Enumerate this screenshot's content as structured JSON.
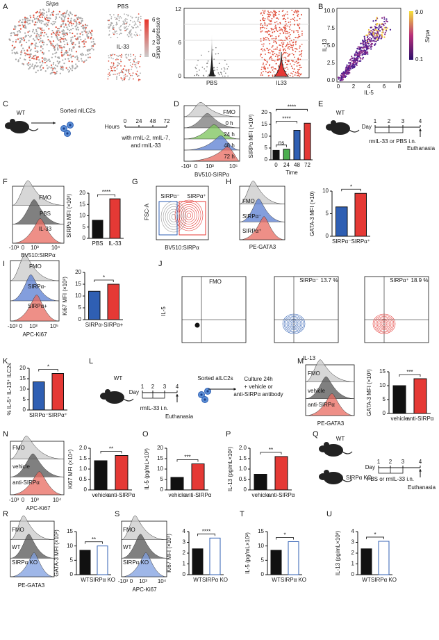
{
  "panels": [
    {
      "letter": "A",
      "labels": [
        "Sirpa",
        "PBS",
        "IL-33",
        "Sirpa expression",
        "0",
        "2",
        "4",
        "6",
        "0",
        "6",
        "12",
        "PBS",
        "IL33"
      ]
    },
    {
      "letter": "B",
      "labels": [
        "10.0",
        "7.5",
        "5.0",
        "2.5",
        "0.0",
        "0",
        "2",
        "4",
        "6",
        "8",
        "IL-13",
        "IL-5",
        "9.0",
        "0.1",
        "Sirpa"
      ]
    },
    {
      "letter": "C",
      "labels": [
        "WT",
        "Sorted nILC2s",
        "Hours",
        "0",
        "24",
        "48",
        "72",
        "with rmIL-2, rmIL-7,",
        "and rmIL-33"
      ]
    },
    {
      "letter": "D",
      "labels": [
        "FMO",
        "0 h",
        "24 h",
        "48 h",
        "72 h",
        "-10³",
        "0",
        "10³",
        "10⁵",
        "BV510-SIRPα"
      ],
      "chart": {
        "type": "bar",
        "ylabel": "SIRPα MFI (×10³)",
        "xlabel": "Time",
        "categories": [
          "0",
          "24",
          "48",
          "72"
        ],
        "values": [
          4,
          4.5,
          12.5,
          15.5
        ],
        "colors": [
          "#111111",
          "#4caf50",
          "#2f5fb3",
          "#e53935"
        ],
        "ylim": [
          0,
          20
        ],
        "yticks": [
          0,
          5,
          10,
          15,
          20
        ],
        "significance": [
          "ns",
          "****",
          "****"
        ]
      }
    },
    {
      "letter": "E",
      "labels": [
        "WT",
        "Day",
        "1",
        "2",
        "3",
        "4",
        "rmIL-33 or PBS i.n.",
        "Euthanasia"
      ]
    },
    {
      "letter": "F",
      "labels": [
        "FMO",
        "PBS",
        "IL-33",
        "-10³",
        "0",
        "10³",
        "10⁴",
        "BV510:SIRPα"
      ],
      "chart": {
        "type": "bar",
        "ylabel": "SIRPα MFI (×10³)",
        "categories": [
          "PBS",
          "IL-33"
        ],
        "values": [
          8,
          17.5
        ],
        "colors": [
          "#111111",
          "#e53935"
        ],
        "ylim": [
          0,
          20
        ],
        "yticks": [
          0,
          5,
          10,
          15,
          20
        ],
        "significance": [
          "****"
        ]
      }
    },
    {
      "letter": "G",
      "labels": [
        "FSC-A",
        "SIRPα⁻",
        "SIRPα⁺",
        "BV510:SIRPα"
      ]
    },
    {
      "letter": "H",
      "labels": [
        "FMO",
        "SIRPα⁻",
        "SIRPα⁺",
        "PE-GATA3"
      ],
      "chart": {
        "type": "bar",
        "ylabel": "GATA-3 MFI (×10)",
        "categories": [
          "SIRPα⁻",
          "SIRPα⁺"
        ],
        "values": [
          6.5,
          9.5
        ],
        "colors": [
          "#2f5fb3",
          "#e53935"
        ],
        "ylim": [
          0,
          10
        ],
        "yticks": [
          0,
          5,
          10
        ],
        "significance": [
          "*"
        ]
      }
    },
    {
      "letter": "I",
      "labels": [
        "FMO",
        "SIRPα-",
        "SIRPα+",
        "-10³",
        "0",
        "10³",
        "10⁵",
        "APC-Ki67"
      ],
      "chart": {
        "type": "bar",
        "ylabel": "Ki67 MFI (×10²)",
        "categories": [
          "SIRPα-",
          "SIRPα+"
        ],
        "values": [
          12,
          15
        ],
        "colors": [
          "#2f5fb3",
          "#e53935"
        ],
        "ylim": [
          0,
          20
        ],
        "yticks": [
          0,
          5,
          10,
          15,
          20
        ],
        "significance": [
          "*"
        ]
      }
    },
    {
      "letter": "J",
      "labels": [
        "FMO",
        "SIRPα⁻",
        "13.7 %",
        "SIRPα⁺",
        "18.9 %",
        "IL-5",
        "IL-13"
      ]
    },
    {
      "letter": "K",
      "labels": [],
      "chart": {
        "type": "bar",
        "ylabel": "% IL-5⁺ IL-13⁺ ILC2s",
        "categories": [
          "SIRPα⁻",
          "SIRPα⁺"
        ],
        "values": [
          13.5,
          17.5
        ],
        "colors": [
          "#2f5fb3",
          "#e53935"
        ],
        "ylim": [
          0,
          20
        ],
        "yticks": [
          0,
          5,
          10,
          15,
          20
        ],
        "significance": [
          "*"
        ]
      }
    },
    {
      "letter": "L",
      "labels": [
        "WT",
        "Day",
        "1",
        "2",
        "3",
        "4",
        "rmIL-33 i.n.",
        "Euthanasia",
        "Sorted aILC2s",
        "Culture 24h",
        "+ vehicle  or",
        "anti-SIRPα antibody"
      ]
    },
    {
      "letter": "M",
      "labels": [
        "FMO",
        "vehicle",
        "anti-SIRPα",
        "PE-GATA3"
      ],
      "chart": {
        "type": "bar",
        "ylabel": "GATA-3 MFI (×10³)",
        "categories": [
          "vehicle",
          "anti-SIRPα"
        ],
        "values": [
          10,
          12.5
        ],
        "colors": [
          "#111111",
          "#e53935"
        ],
        "ylim": [
          0,
          15
        ],
        "yticks": [
          0,
          5,
          10,
          15
        ],
        "significance": [
          "***"
        ]
      }
    },
    {
      "letter": "N",
      "labels": [
        "FMO",
        "vehicle",
        "anti-SIRPα",
        "-10³",
        "0",
        "10³",
        "10⁴",
        "APC-Ki67"
      ],
      "chart": {
        "type": "bar",
        "ylabel": "Ki67 MFI (×10⁴)",
        "categories": [
          "vehicle",
          "anti-SIRPα"
        ],
        "values": [
          1.4,
          1.65
        ],
        "colors": [
          "#111111",
          "#e53935"
        ],
        "ylim": [
          0,
          2
        ],
        "yticks": [
          0,
          0.5,
          {
            "value": 1,
            "label": "1.0"
          },
          1.5,
          {
            "value": 2,
            "label": "2.0"
          }
        ],
        "significance": [
          "**"
        ]
      }
    },
    {
      "letter": "O",
      "labels": [],
      "chart": {
        "type": "bar",
        "ylabel": "IL-5 (pg/mL×10²)",
        "categories": [
          "vehicle",
          "anti-SIRPα"
        ],
        "values": [
          6,
          12.5
        ],
        "colors": [
          "#111111",
          "#e53935"
        ],
        "ylim": [
          0,
          20
        ],
        "yticks": [
          0,
          5,
          10,
          15,
          20
        ],
        "significance": [
          "***"
        ]
      }
    },
    {
      "letter": "P",
      "labels": [],
      "chart": {
        "type": "bar",
        "ylabel": "IL-13 (pg/mL×10²)",
        "categories": [
          "vehicle",
          "anti-SIRPα"
        ],
        "values": [
          0.75,
          1.6
        ],
        "colors": [
          "#111111",
          "#e53935"
        ],
        "ylim": [
          0,
          2
        ],
        "yticks": [
          0,
          0.5,
          {
            "value": 1,
            "label": "1.0"
          },
          1.5,
          {
            "value": 2,
            "label": "2.0"
          }
        ],
        "significance": [
          "**"
        ]
      }
    },
    {
      "letter": "Q",
      "labels": [
        "WT",
        "SIRPα KO",
        "Day",
        "1",
        "2",
        "3",
        "4",
        "PBS or rmIL-33 i.n.",
        "Euthanasia"
      ]
    },
    {
      "letter": "R",
      "labels": [
        "FMO",
        "WT",
        "SIRPα KO",
        "PE-GATA3"
      ],
      "chart": {
        "type": "bar",
        "ylabel": "GATA-3 MFI (×10²)",
        "categories": [
          "WT",
          "SIRPα KO"
        ],
        "values": [
          8.5,
          10
        ],
        "colors": [
          "#111111",
          "#ffffff"
        ],
        "edge_colors": [
          "#111111",
          "#2f5fb3"
        ],
        "ylim": [
          0,
          15
        ],
        "yticks": [
          0,
          5,
          10,
          15
        ],
        "significance": [
          "**"
        ]
      }
    },
    {
      "letter": "S",
      "labels": [
        "FMO",
        "WT",
        "SIRPα KO",
        "-10³",
        "0",
        "10³",
        "10⁴",
        "APC-Ki67"
      ],
      "chart": {
        "type": "bar",
        "ylabel": "Ki67 MFI (×10³)",
        "categories": [
          "WT",
          "SIRPα KO"
        ],
        "values": [
          2.4,
          3.4
        ],
        "colors": [
          "#111111",
          "#ffffff"
        ],
        "edge_colors": [
          "#111111",
          "#2f5fb3"
        ],
        "ylim": [
          0,
          4
        ],
        "yticks": [
          0,
          1,
          2,
          3,
          4
        ],
        "significance": [
          "****"
        ]
      }
    },
    {
      "letter": "T",
      "labels": [],
      "chart": {
        "type": "bar",
        "ylabel": "IL-5 (pg/mL×10²)",
        "categories": [
          "WT",
          "SIRPα KO"
        ],
        "values": [
          8.5,
          11.5
        ],
        "colors": [
          "#111111",
          "#ffffff"
        ],
        "edge_colors": [
          "#111111",
          "#2f5fb3"
        ],
        "ylim": [
          0,
          15
        ],
        "yticks": [
          0,
          5,
          10,
          15
        ],
        "significance": [
          "*"
        ]
      }
    },
    {
      "letter": "U",
      "labels": [],
      "chart": {
        "type": "bar",
        "ylabel": "IL-13 (pg/mL×10²)",
        "categories": [
          "WT",
          "SIRPα KO"
        ],
        "values": [
          2.4,
          3.1
        ],
        "colors": [
          "#111111",
          "#ffffff"
        ],
        "edge_colors": [
          "#111111",
          "#2f5fb3"
        ],
        "ylim": [
          0,
          4
        ],
        "yticks": [
          0,
          1,
          2,
          3,
          4
        ],
        "significance": [
          "*"
        ]
      }
    }
  ]
}
